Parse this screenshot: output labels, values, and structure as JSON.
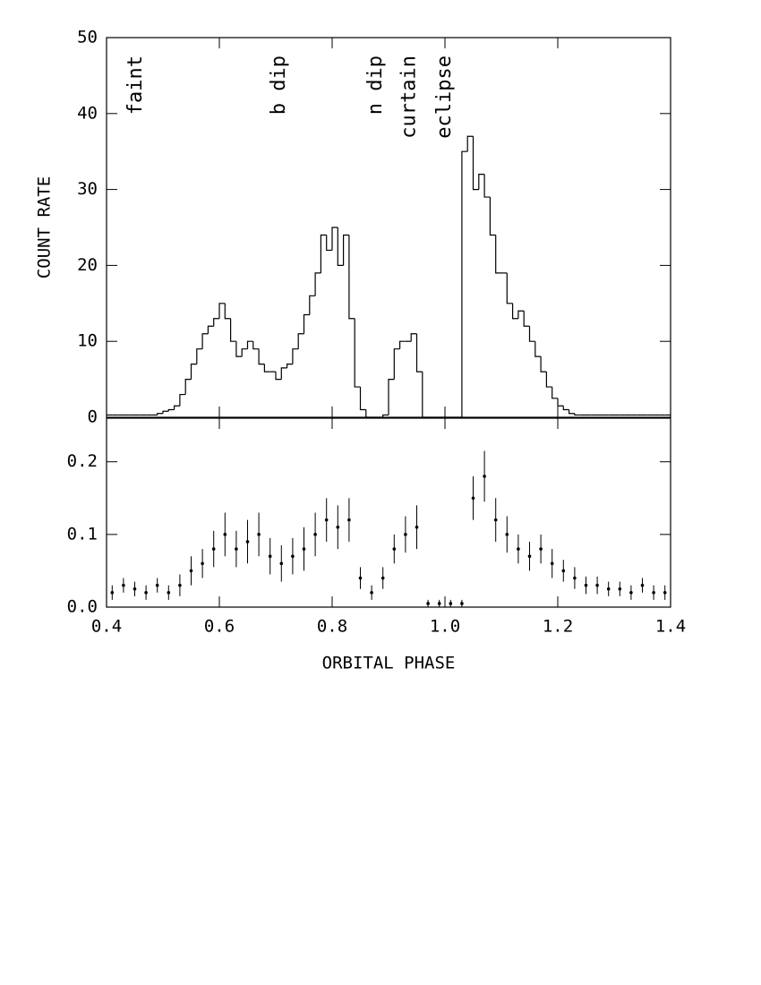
{
  "chart_data": [
    {
      "type": "histogram",
      "ylabel": "COUNT RATE",
      "bins": [
        0.4,
        0.41,
        0.42,
        0.43,
        0.44,
        0.45,
        0.46,
        0.47,
        0.48,
        0.49,
        0.5,
        0.51,
        0.52,
        0.53,
        0.54,
        0.55,
        0.56,
        0.57,
        0.58,
        0.59,
        0.6,
        0.61,
        0.62,
        0.63,
        0.64,
        0.65,
        0.66,
        0.67,
        0.68,
        0.69,
        0.7,
        0.71,
        0.72,
        0.73,
        0.74,
        0.75,
        0.76,
        0.77,
        0.78,
        0.79,
        0.8,
        0.81,
        0.82,
        0.83,
        0.84,
        0.85,
        0.86,
        0.87,
        0.88,
        0.89,
        0.9,
        0.91,
        0.92,
        0.93,
        0.94,
        0.95,
        0.96,
        0.97,
        0.98,
        0.99,
        1,
        1.01,
        1.02,
        1.03,
        1.04,
        1.05,
        1.06,
        1.07,
        1.08,
        1.09,
        1.1,
        1.11,
        1.12,
        1.13,
        1.14,
        1.15,
        1.16,
        1.17,
        1.18,
        1.19,
        1.2,
        1.21,
        1.22,
        1.23,
        1.24,
        1.25,
        1.26,
        1.27,
        1.28,
        1.29,
        1.3,
        1.31,
        1.32,
        1.33,
        1.34,
        1.35,
        1.36,
        1.37,
        1.38,
        1.39,
        1.4
      ],
      "counts": [
        0.3,
        0.3,
        0.3,
        0.3,
        0.3,
        0.3,
        0.3,
        0.3,
        0.3,
        0.5,
        0.8,
        1,
        1.5,
        3,
        5,
        7,
        9,
        11,
        12,
        13,
        15,
        13,
        10,
        8,
        9,
        10,
        9,
        7,
        6,
        6,
        5,
        6.5,
        7,
        9,
        11,
        13.5,
        16,
        19,
        24,
        22,
        25,
        20,
        24,
        13,
        4,
        1,
        0,
        0,
        0,
        0.3,
        5,
        9,
        10,
        10,
        11,
        6,
        0,
        0,
        0,
        0,
        0,
        0,
        0,
        35,
        37,
        30,
        32,
        29,
        24,
        19,
        19,
        15,
        13,
        14,
        12,
        10,
        8,
        6,
        4,
        2.5,
        1.5,
        1,
        0.5,
        0.3,
        0.3,
        0.3,
        0.3,
        0.3,
        0.3,
        0.3,
        0.3,
        0.3,
        0.3,
        0.3,
        0.3,
        0.3,
        0.3,
        0.3,
        0.3,
        0.3
      ],
      "color": "#000000",
      "xlim": [
        0.4,
        1.4
      ],
      "xticks": [
        0.4,
        0.6,
        0.8,
        1,
        1.2,
        1.4
      ],
      "ylim": [
        0,
        50
      ],
      "yticks": [
        0,
        10,
        20,
        30,
        40,
        50
      ],
      "annotations": [
        {
          "text": "faint",
          "x": 0.452
        },
        {
          "text": "b dip",
          "x": 0.706
        },
        {
          "text": "n dip",
          "x": 0.878
        },
        {
          "text": "curtain",
          "x": 0.937
        },
        {
          "text": "eclipse",
          "x": 1.0
        }
      ]
    },
    {
      "type": "scatter",
      "xlabel": "ORBITAL PHASE",
      "x": [
        0.41,
        0.43,
        0.45,
        0.47,
        0.49,
        0.51,
        0.53,
        0.55,
        0.57,
        0.59,
        0.61,
        0.63,
        0.65,
        0.67,
        0.69,
        0.71,
        0.73,
        0.75,
        0.77,
        0.79,
        0.81,
        0.83,
        0.85,
        0.87,
        0.89,
        0.91,
        0.93,
        0.95,
        0.97,
        0.99,
        1.01,
        1.03,
        1.05,
        1.07,
        1.09,
        1.11,
        1.13,
        1.15,
        1.17,
        1.19,
        1.21,
        1.23,
        1.25,
        1.27,
        1.29,
        1.31,
        1.33,
        1.35,
        1.37,
        1.39
      ],
      "y": [
        0.02,
        0.03,
        0.025,
        0.02,
        0.03,
        0.02,
        0.03,
        0.05,
        0.06,
        0.08,
        0.1,
        0.08,
        0.09,
        0.1,
        0.07,
        0.06,
        0.07,
        0.08,
        0.1,
        0.12,
        0.11,
        0.12,
        0.04,
        0.02,
        0.04,
        0.08,
        0.1,
        0.11,
        0.005,
        0.005,
        0.005,
        0.005,
        0.15,
        0.18,
        0.12,
        0.1,
        0.08,
        0.07,
        0.08,
        0.06,
        0.05,
        0.04,
        0.03,
        0.03,
        0.025,
        0.025,
        0.02,
        0.03,
        0.02,
        0.02
      ],
      "yerr": [
        0.01,
        0.01,
        0.01,
        0.01,
        0.01,
        0.01,
        0.015,
        0.02,
        0.02,
        0.025,
        0.03,
        0.025,
        0.03,
        0.03,
        0.025,
        0.025,
        0.025,
        0.03,
        0.03,
        0.03,
        0.03,
        0.03,
        0.015,
        0.01,
        0.015,
        0.02,
        0.025,
        0.03,
        0.005,
        0.005,
        0.005,
        0.005,
        0.03,
        0.035,
        0.03,
        0.025,
        0.02,
        0.02,
        0.02,
        0.02,
        0.015,
        0.015,
        0.012,
        0.012,
        0.01,
        0.01,
        0.01,
        0.01,
        0.01,
        0.01
      ],
      "color": "#000000",
      "xlim": [
        0.4,
        1.4
      ],
      "xticks": [
        0.4,
        0.6,
        0.8,
        {
          "value": 1,
          "label": "1.0"
        },
        1.2,
        1.4
      ],
      "ylim": [
        0,
        0.26
      ],
      "yticks": [
        {
          "value": 0,
          "label": "0.0"
        },
        0.1,
        0.2
      ]
    }
  ]
}
